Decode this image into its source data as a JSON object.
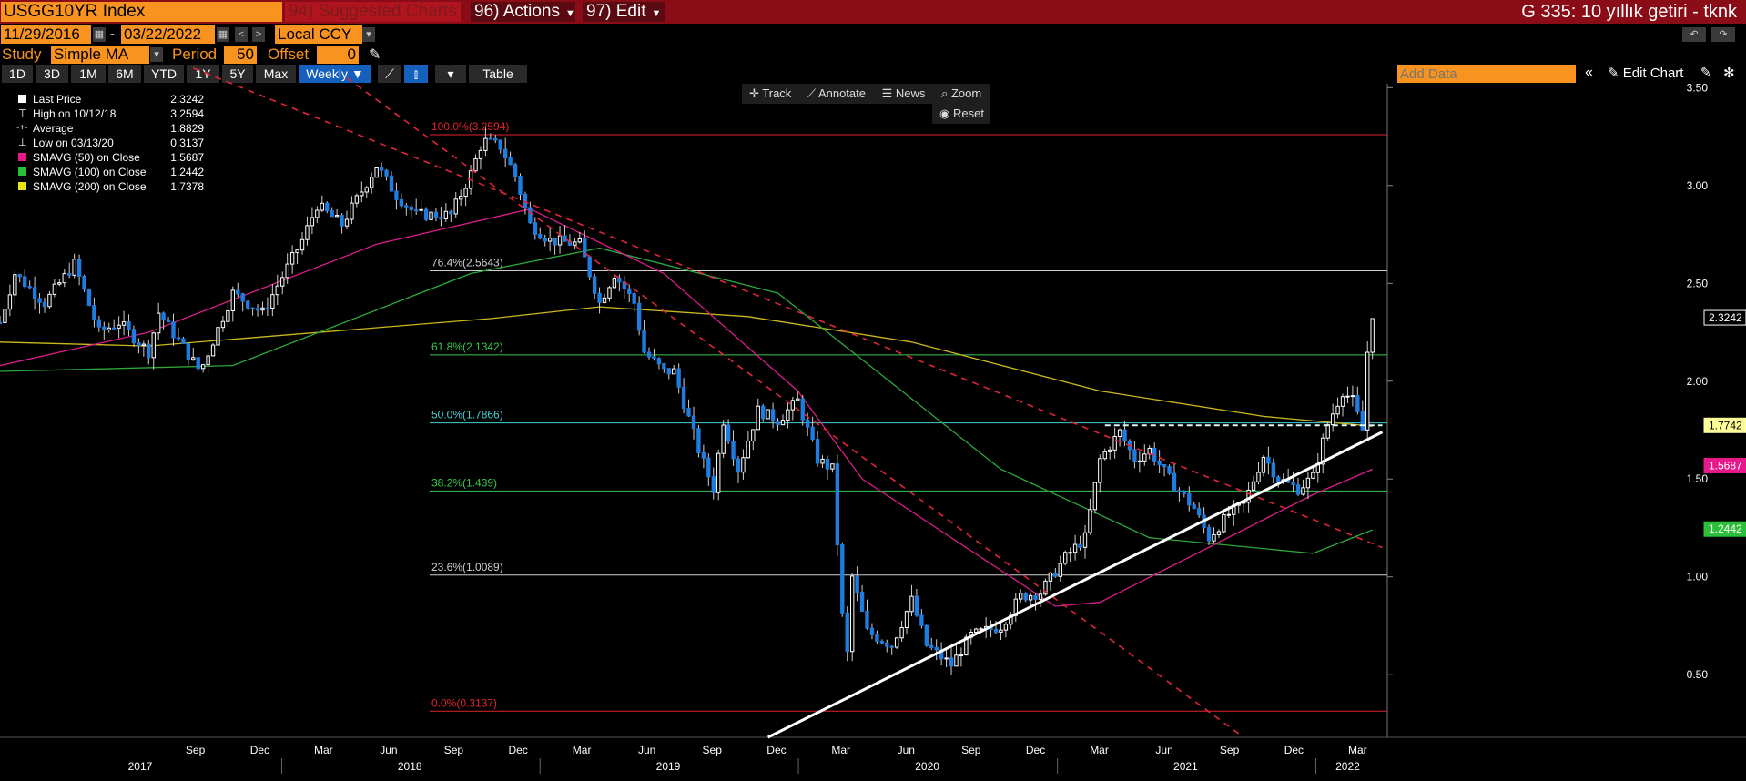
{
  "header": {
    "ticker": "USGG10YR Index",
    "suggested": "94) Suggested Charts",
    "actions": "96) Actions",
    "edit": "97) Edit",
    "right_title": "G 335: 10 yıllık getiri - tknk"
  },
  "range": {
    "start": "11/29/2016",
    "dash": "-",
    "end": "03/22/2022",
    "currency": "Local CCY"
  },
  "study": {
    "label": "Study",
    "type": "Simple MA",
    "period_label": "Period",
    "period": "50",
    "offset_label": "Offset",
    "offset": "0"
  },
  "periods": [
    "1D",
    "3D",
    "1M",
    "6M",
    "YTD",
    "1Y",
    "5Y",
    "Max"
  ],
  "frequency": "Weekly ▼",
  "table_label": "Table",
  "add_data_placeholder": "Add Data",
  "edit_chart": "Edit Chart",
  "tools": {
    "track": "Track",
    "annotate": "Annotate",
    "news": "News",
    "zoom": "Zoom",
    "reset": "Reset"
  },
  "legend": [
    {
      "label": "Last Price",
      "value": "2.3242",
      "color": "#ffffff"
    },
    {
      "label": "High on 10/12/18",
      "value": "3.2594",
      "color": ""
    },
    {
      "label": "Average",
      "value": "1.8829",
      "color": ""
    },
    {
      "label": "Low on 03/13/20",
      "value": "0.3137",
      "color": ""
    },
    {
      "label": "SMAVG (50)  on Close",
      "value": "1.5687",
      "color": "#e8198b"
    },
    {
      "label": "SMAVG (100)  on Close",
      "value": "1.2442",
      "color": "#2bbf3a"
    },
    {
      "label": "SMAVG (200)  on Close",
      "value": "1.7378",
      "color": "#e5e510"
    }
  ],
  "colors": {
    "up": "#ffffff",
    "down": "#1e7de0",
    "sma50": "#d81e8a",
    "sma100": "#2da83a",
    "sma200": "#cbb81e",
    "fib_red": "#e0242e",
    "fib_white": "#cfcfcf",
    "fib_green": "#37c94d",
    "fib_cyan": "#45d0d6",
    "trend_red": "#e0243a",
    "trend_white": "#ffffff"
  },
  "chart_data": {
    "type": "candlestick",
    "frequency": "weekly",
    "y_axis": {
      "ticks": [
        "0.50",
        "1.00",
        "1.50",
        "2.00",
        "2.50",
        "3.00",
        "3.50"
      ],
      "ylim": [
        0.18,
        3.52
      ]
    },
    "x_axis": {
      "month_ticks": [
        "Sep",
        "Dec",
        "Mar",
        "Jun",
        "Sep",
        "Dec",
        "Mar",
        "Jun",
        "Sep",
        "Dec",
        "Mar",
        "Jun",
        "Sep",
        "Dec",
        "Mar",
        "Jun",
        "Sep",
        "Dec",
        "Mar"
      ],
      "years": [
        "2017",
        "2018",
        "2019",
        "2020",
        "2021",
        "2022"
      ]
    },
    "fibonacci": [
      {
        "label": "100.0%(3.2594)",
        "value": 3.2594
      },
      {
        "label": "76.4%(2.5643)",
        "value": 2.5643
      },
      {
        "label": "61.8%(2.1342)",
        "value": 2.1342
      },
      {
        "label": "50.0%(1.7866)",
        "value": 1.7866
      },
      {
        "label": "38.2%(1.439)",
        "value": 1.439
      },
      {
        "label": "23.6%(1.0089)",
        "value": 1.0089
      },
      {
        "label": "0.0%(0.3137)",
        "value": 0.3137
      }
    ],
    "price_labels": [
      {
        "text": "2.3242",
        "value": 2.3242
      },
      {
        "text": "1.7742",
        "value": 1.7742
      },
      {
        "text": "1.5687",
        "value": 1.5687
      },
      {
        "text": "1.2442",
        "value": 1.2442
      }
    ],
    "close_path": [
      [
        "2016-11-29",
        2.3
      ],
      [
        "2016-12-20",
        2.55
      ],
      [
        "2017-01-31",
        2.4
      ],
      [
        "2017-03-14",
        2.6
      ],
      [
        "2017-04-18",
        2.25
      ],
      [
        "2017-05-16",
        2.3
      ],
      [
        "2017-06-27",
        2.15
      ],
      [
        "2017-07-11",
        2.35
      ],
      [
        "2017-09-08",
        2.05
      ],
      [
        "2017-10-24",
        2.45
      ],
      [
        "2017-12-05",
        2.35
      ],
      [
        "2018-01-30",
        2.72
      ],
      [
        "2018-02-20",
        2.9
      ],
      [
        "2018-03-27",
        2.8
      ],
      [
        "2018-05-15",
        3.1
      ],
      [
        "2018-06-12",
        2.95
      ],
      [
        "2018-07-10",
        2.85
      ],
      [
        "2018-08-28",
        2.85
      ],
      [
        "2018-09-25",
        3.06
      ],
      [
        "2018-10-12",
        3.23
      ],
      [
        "2018-11-06",
        3.2
      ],
      [
        "2018-11-27",
        3.05
      ],
      [
        "2018-12-18",
        2.8
      ],
      [
        "2019-01-15",
        2.72
      ],
      [
        "2019-02-26",
        2.7
      ],
      [
        "2019-03-26",
        2.4
      ],
      [
        "2019-04-16",
        2.55
      ],
      [
        "2019-05-14",
        2.4
      ],
      [
        "2019-05-28",
        2.15
      ],
      [
        "2019-06-25",
        2.05
      ],
      [
        "2019-07-09",
        2.05
      ],
      [
        "2019-08-13",
        1.65
      ],
      [
        "2019-09-03",
        1.45
      ],
      [
        "2019-09-17",
        1.8
      ],
      [
        "2019-10-08",
        1.55
      ],
      [
        "2019-11-05",
        1.85
      ],
      [
        "2019-12-03",
        1.8
      ],
      [
        "2019-12-31",
        1.9
      ],
      [
        "2020-01-28",
        1.6
      ],
      [
        "2020-02-18",
        1.55
      ],
      [
        "2020-03-03",
        0.8
      ],
      [
        "2020-03-09",
        0.55
      ],
      [
        "2020-03-17",
        1.0
      ],
      [
        "2020-04-07",
        0.72
      ],
      [
        "2020-05-12",
        0.65
      ],
      [
        "2020-06-09",
        0.88
      ],
      [
        "2020-06-30",
        0.65
      ],
      [
        "2020-08-04",
        0.55
      ],
      [
        "2020-09-01",
        0.7
      ],
      [
        "2020-10-13",
        0.75
      ],
      [
        "2020-11-10",
        0.9
      ],
      [
        "2020-12-08",
        0.92
      ],
      [
        "2021-01-12",
        1.1
      ],
      [
        "2021-02-09",
        1.2
      ],
      [
        "2021-03-02",
        1.6
      ],
      [
        "2021-03-30",
        1.74
      ],
      [
        "2021-04-20",
        1.6
      ],
      [
        "2021-05-11",
        1.65
      ],
      [
        "2021-06-08",
        1.5
      ],
      [
        "2021-07-13",
        1.35
      ],
      [
        "2021-08-03",
        1.2
      ],
      [
        "2021-08-31",
        1.32
      ],
      [
        "2021-09-21",
        1.37
      ],
      [
        "2021-10-19",
        1.62
      ],
      [
        "2021-11-09",
        1.5
      ],
      [
        "2021-12-07",
        1.45
      ],
      [
        "2021-12-28",
        1.51
      ],
      [
        "2022-01-18",
        1.78
      ],
      [
        "2022-02-08",
        1.95
      ],
      [
        "2022-02-22",
        1.9
      ],
      [
        "2022-03-08",
        1.75
      ],
      [
        "2022-03-15",
        2.15
      ],
      [
        "2022-03-22",
        2.32
      ]
    ],
    "sma50_path": [
      [
        "2016-11-29",
        2.08
      ],
      [
        "2017-06-27",
        2.25
      ],
      [
        "2018-05-15",
        2.7
      ],
      [
        "2018-12-18",
        2.88
      ],
      [
        "2019-06-25",
        2.55
      ],
      [
        "2019-12-31",
        1.95
      ],
      [
        "2020-03-31",
        1.5
      ],
      [
        "2020-12-29",
        0.85
      ],
      [
        "2021-03-02",
        0.87
      ],
      [
        "2021-12-28",
        1.42
      ],
      [
        "2022-03-22",
        1.55
      ]
    ],
    "sma100_path": [
      [
        "2016-11-29",
        2.05
      ],
      [
        "2017-10-24",
        2.08
      ],
      [
        "2018-09-25",
        2.55
      ],
      [
        "2019-03-26",
        2.68
      ],
      [
        "2019-12-03",
        2.45
      ],
      [
        "2020-10-13",
        1.55
      ],
      [
        "2021-05-11",
        1.2
      ],
      [
        "2021-12-28",
        1.12
      ],
      [
        "2022-03-22",
        1.24
      ]
    ],
    "sma200_path": [
      [
        "2016-11-29",
        2.2
      ],
      [
        "2017-06-27",
        2.18
      ],
      [
        "2018-10-23",
        2.32
      ],
      [
        "2019-03-26",
        2.38
      ],
      [
        "2019-10-22",
        2.33
      ],
      [
        "2020-06-09",
        2.2
      ],
      [
        "2021-03-02",
        1.95
      ],
      [
        "2021-10-19",
        1.82
      ],
      [
        "2022-03-22",
        1.77
      ]
    ],
    "trendlines": [
      {
        "kind": "red-dashed",
        "from": [
          "2017-08-29",
          3.6
        ],
        "to": [
          "2022-04-05",
          1.15
        ]
      },
      {
        "kind": "red-dashed",
        "from": [
          "2018-04-03",
          3.55
        ],
        "to": [
          "2021-09-21",
          0.18
        ]
      },
      {
        "kind": "white-solid",
        "from": [
          "2019-11-19",
          0.18
        ],
        "to": [
          "2022-04-05",
          1.74
        ]
      },
      {
        "kind": "white-dashed",
        "from": [
          "2021-03-09",
          1.7742
        ],
        "to": [
          "2022-04-05",
          1.7742
        ]
      }
    ]
  }
}
